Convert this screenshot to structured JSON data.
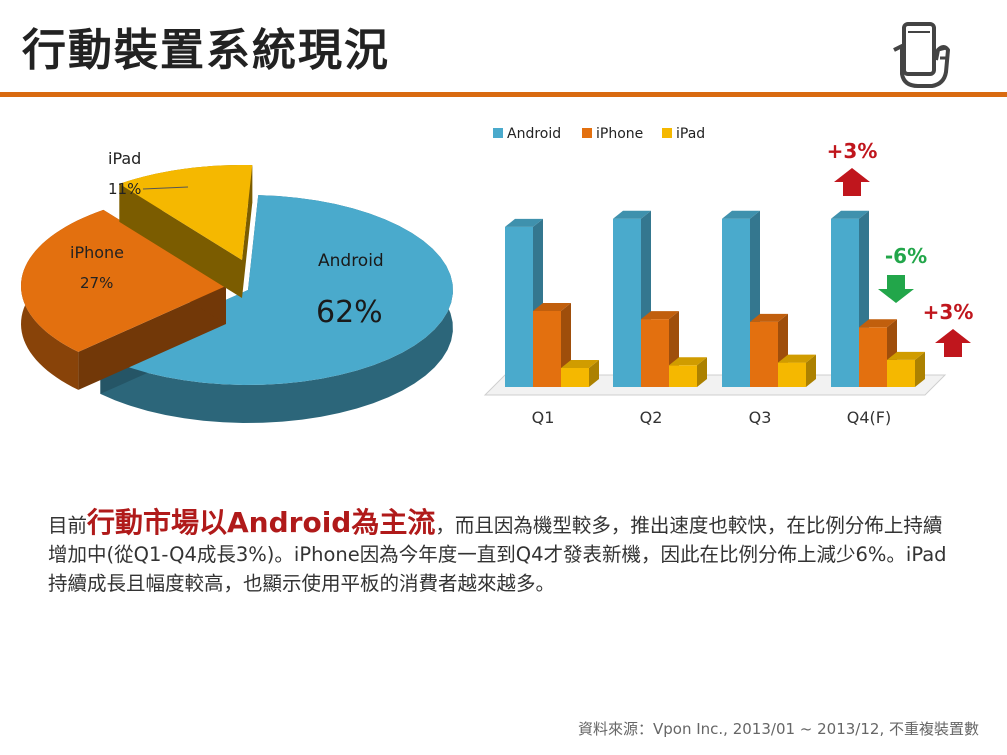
{
  "slide": {
    "title": "行動裝置系統現況",
    "icon": "smartphone-hand-icon",
    "accent_color": "#d96a10"
  },
  "chart_data": [
    {
      "type": "pie",
      "slices": [
        {
          "name": "Android",
          "value": 62,
          "label": "62%",
          "color": "#4aaacc"
        },
        {
          "name": "iPhone",
          "value": 27,
          "label": "27%",
          "color": "#e3700f"
        },
        {
          "name": "iPad",
          "value": 11,
          "label": "11%",
          "color": "#f5b800"
        }
      ]
    },
    {
      "type": "bar",
      "categories": [
        "Q1",
        "Q2",
        "Q3",
        "Q4(F)"
      ],
      "series": [
        {
          "name": "Android",
          "values": [
            59,
            62,
            62,
            62
          ],
          "color": "#4aaacc"
        },
        {
          "name": "iPhone",
          "values": [
            28,
            25,
            24,
            22
          ],
          "color": "#e3700f"
        },
        {
          "name": "iPad",
          "values": [
            7,
            8,
            9,
            10
          ],
          "color": "#f5b800"
        }
      ],
      "legend": "top",
      "grid": false,
      "annotations": [
        {
          "text": "+3%",
          "direction": "up",
          "color": "#c0161d",
          "target": "Android Q4(F)"
        },
        {
          "text": "-6%",
          "direction": "down",
          "color": "#22a64a",
          "target": "iPhone Q4(F)"
        },
        {
          "text": "+3%",
          "direction": "up",
          "color": "#c0161d",
          "target": "iPad Q4(F)"
        }
      ]
    }
  ],
  "summary": {
    "lead": "目前",
    "highlight": "行動市場以Android為主流",
    "body": "，而且因為機型較多，推出速度也較快，在比例分佈上持續增加中(從Q1-Q4成長3%)。iPhone因為今年度一直到Q4才發表新機，因此在比例分佈上減少6%。iPad持續成長且幅度較高，也顯示使用平板的消費者越來越多。"
  },
  "source": "資料來源：Vpon Inc., 2013/01 ~ 2013/12, 不重複裝置數"
}
